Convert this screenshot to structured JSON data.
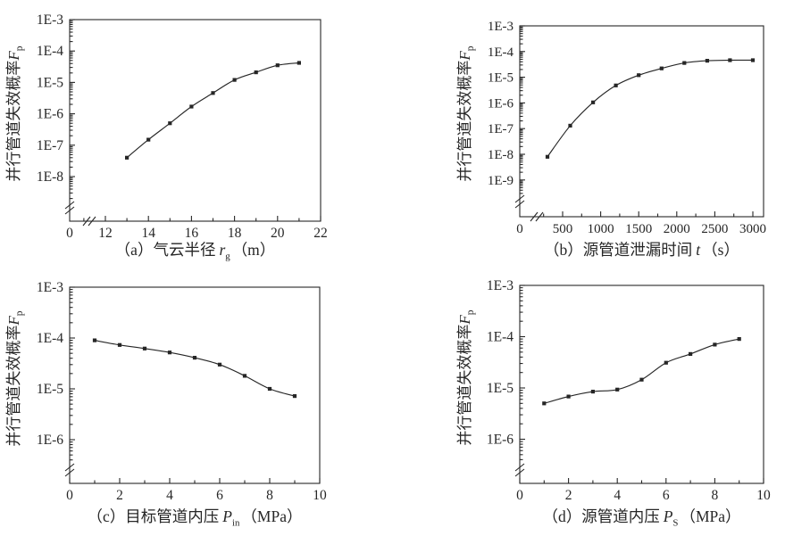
{
  "figure": {
    "background": "#ffffff",
    "ink_color": "#262626",
    "y_axis_label": {
      "text": "并行管道失效概率",
      "symbol": "F",
      "subscript": "p"
    }
  },
  "chart_data": [
    {
      "id": "a",
      "type": "line",
      "title": "（a）气云半径 rg（m）",
      "caption": {
        "prefix": "（a）气云半径",
        "symbol": "r",
        "subscript": "g",
        "unit": "（m）"
      },
      "ylabel": "并行管道失效概率Fp",
      "y_scale": "log",
      "y_top_exp": -3,
      "y_tick_labels": [
        "1E-3",
        "1E-4",
        "1E-5",
        "1E-6",
        "1E-7",
        "1E-8"
      ],
      "origin_label": "0",
      "x_axis_break": true,
      "x_tick_values": [
        12,
        14,
        16,
        18,
        20,
        22
      ],
      "x_tick_labels": [
        "12",
        "14",
        "16",
        "18",
        "20",
        "22"
      ],
      "x_minor_values": [
        11,
        13,
        15,
        17,
        19,
        21
      ],
      "x_range": [
        12,
        22
      ],
      "grid": false,
      "x": [
        13,
        14,
        15,
        16,
        17,
        18,
        19,
        20,
        21
      ],
      "y": [
        4e-08,
        1.5e-07,
        5e-07,
        1.7e-06,
        4.6e-06,
        1.2e-05,
        2.1e-05,
        3.5e-05,
        4.2e-05
      ]
    },
    {
      "id": "b",
      "type": "line",
      "title": "（b）源管道泄漏时间 t（s）",
      "caption": {
        "prefix": "（b）源管道泄漏时间",
        "symbol": "t",
        "subscript": "",
        "unit": "（s）"
      },
      "ylabel": "并行管道失效概率Fp",
      "y_scale": "log",
      "y_top_exp": -3,
      "y_tick_labels": [
        "1E-3",
        "1E-4",
        "1E-5",
        "1E-6",
        "1E-7",
        "1E-8",
        "1E-9"
      ],
      "origin_label": "0",
      "x_axis_break": true,
      "x_tick_values": [
        500,
        1000,
        1500,
        2000,
        2500,
        3000
      ],
      "x_tick_labels": [
        "500",
        "1000",
        "1500",
        "2000",
        "2500",
        "3000"
      ],
      "x_minor_values": [
        250,
        750,
        1250,
        1750,
        2250,
        2750
      ],
      "x_range": [
        300,
        3000
      ],
      "grid": false,
      "x": [
        300,
        600,
        900,
        1200,
        1500,
        1800,
        2100,
        2400,
        2700,
        3000
      ],
      "y": [
        8e-09,
        1.3e-07,
        1.05e-06,
        4.8e-06,
        1.2e-05,
        2.2e-05,
        3.6e-05,
        4.4e-05,
        4.6e-05,
        4.6e-05
      ]
    },
    {
      "id": "c",
      "type": "line",
      "title": "（c）目标管道内压 Pin（MPa）",
      "caption": {
        "prefix": "（c）目标管道内压",
        "symbol": "P",
        "subscript": "in",
        "unit": "（MPa）"
      },
      "ylabel": "并行管道失效概率Fp",
      "y_scale": "log",
      "y_top_exp": -3,
      "y_tick_labels": [
        "1E-3",
        "1E-4",
        "1E-5",
        "1E-6"
      ],
      "origin_label": "",
      "x_axis_break": false,
      "x_tick_values": [
        0,
        2,
        4,
        6,
        8,
        10
      ],
      "x_tick_labels": [
        "0",
        "2",
        "4",
        "6",
        "8",
        "10"
      ],
      "x_minor_values": [
        1,
        3,
        5,
        7,
        9
      ],
      "x_range": [
        0,
        10
      ],
      "grid": false,
      "x": [
        1,
        2,
        3,
        4,
        5,
        6,
        7,
        8,
        9
      ],
      "y": [
        9e-05,
        7.3e-05,
        6.2e-05,
        5.2e-05,
        4.1e-05,
        3e-05,
        1.8e-05,
        1e-05,
        7.2e-06
      ]
    },
    {
      "id": "d",
      "type": "line",
      "title": "（d）源管道内压 PS（MPa）",
      "caption": {
        "prefix": "（d）源管道内压",
        "symbol": "P",
        "subscript": "S",
        "unit": "（MPa）"
      },
      "ylabel": "并行管道失效概率Fp",
      "y_scale": "log",
      "y_top_exp": -3,
      "y_tick_labels": [
        "1E-3",
        "1E-4",
        "1E-5",
        "1E-6"
      ],
      "origin_label": "",
      "x_axis_break": false,
      "x_tick_values": [
        0,
        2,
        4,
        6,
        8,
        10
      ],
      "x_tick_labels": [
        "0",
        "2",
        "4",
        "6",
        "8",
        "10"
      ],
      "x_minor_values": [
        1,
        3,
        5,
        7,
        9
      ],
      "x_range": [
        0,
        10
      ],
      "grid": false,
      "x": [
        1,
        2,
        3,
        4,
        5,
        6,
        7,
        8,
        9
      ],
      "y": [
        5e-06,
        6.8e-06,
        8.5e-06,
        9.3e-06,
        1.45e-05,
        3.1e-05,
        4.6e-05,
        7e-05,
        9e-05
      ]
    }
  ]
}
